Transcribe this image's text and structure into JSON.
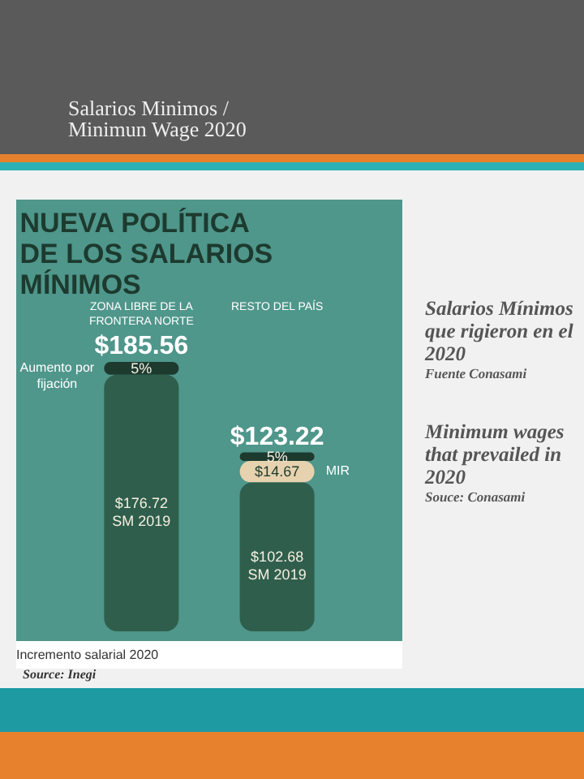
{
  "chart_data": {
    "type": "bar",
    "stacked": true,
    "title": "Salarios Minimos / Minimun Wage 2020",
    "subtitle": "NUEVA POLÍTICA\nDE LOS SALARIOS\nMÍNIMOS",
    "categories": [
      "ZONA LIBRE DE LA\nFRONTERA NORTE",
      "RESTO DEL PAÍS"
    ],
    "series": [
      {
        "color": "#2f5e4c",
        "values": [
          176.72,
          102.68
        ],
        "value_labels": [
          "$176.72\nSM 2019",
          "$102.68\nSM 2019"
        ]
      },
      {
        "name": "MIR",
        "color": "#e6d2ae",
        "values": [
          null,
          14.67
        ],
        "value_labels": [
          null,
          "$14.67"
        ]
      },
      {
        "color": "#1d3a2e",
        "values": [
          8.84,
          5.87
        ]
      }
    ],
    "totals": [
      "$185.56",
      "$123.22"
    ],
    "annotations": [
      "Aumento por\nfijación",
      "Incremento salarial 2020",
      "Source: Inegi",
      "Salarios Mínimos que rigieron en el 2020",
      "Fuente Conasami",
      "Minimum wages that prevailed in 2020",
      "Souce: Conasami",
      {
        "text": "5%",
        "x": "ZONA LIBRE DE LA\nFRONTERA NORTE",
        "y": 181.14
      },
      {
        "text": "5%",
        "x": "RESTO DEL PAÍS",
        "y": 120.3
      }
    ]
  }
}
